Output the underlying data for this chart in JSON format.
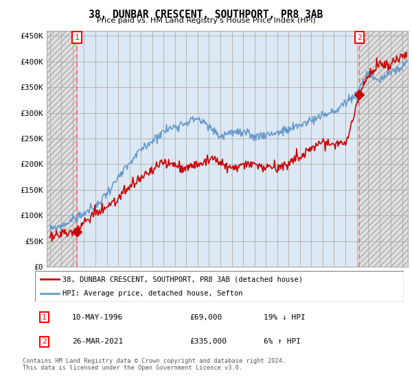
{
  "title": "38, DUNBAR CRESCENT, SOUTHPORT, PR8 3AB",
  "subtitle": "Price paid vs. HM Land Registry's House Price Index (HPI)",
  "ylim": [
    0,
    460000
  ],
  "yticks": [
    0,
    50000,
    100000,
    150000,
    200000,
    250000,
    300000,
    350000,
    400000,
    450000
  ],
  "ytick_labels": [
    "£0",
    "£50K",
    "£100K",
    "£150K",
    "£200K",
    "£250K",
    "£300K",
    "£350K",
    "£400K",
    "£450K"
  ],
  "xlim_start": 1993.7,
  "xlim_end": 2025.5,
  "sale1_year": 1996.36,
  "sale1_price": 69000,
  "sale2_year": 2021.23,
  "sale2_price": 335000,
  "sale1_date": "10-MAY-1996",
  "sale1_pct": "19% ↓ HPI",
  "sale2_date": "26-MAR-2021",
  "sale2_pct": "6% ↑ HPI",
  "red_line_color": "#cc0000",
  "blue_line_color": "#6699cc",
  "marker_color": "#cc0000",
  "marker_size": 7,
  "legend1": "38, DUNBAR CRESCENT, SOUTHPORT, PR8 3AB (detached house)",
  "legend2": "HPI: Average price, detached house, Sefton",
  "footnote": "Contains HM Land Registry data © Crown copyright and database right 2024.\nThis data is licensed under the Open Government Licence v3.0.",
  "background_color": "#ffffff",
  "plot_bg_color": "#dce9f5",
  "hatch_bg_color": "#e0e0e0",
  "grid_color": "#aaaaaa",
  "hatched_regions": [
    {
      "x_start": 1993.7,
      "x_end": 1996.36
    },
    {
      "x_start": 2021.23,
      "x_end": 2025.5
    }
  ]
}
